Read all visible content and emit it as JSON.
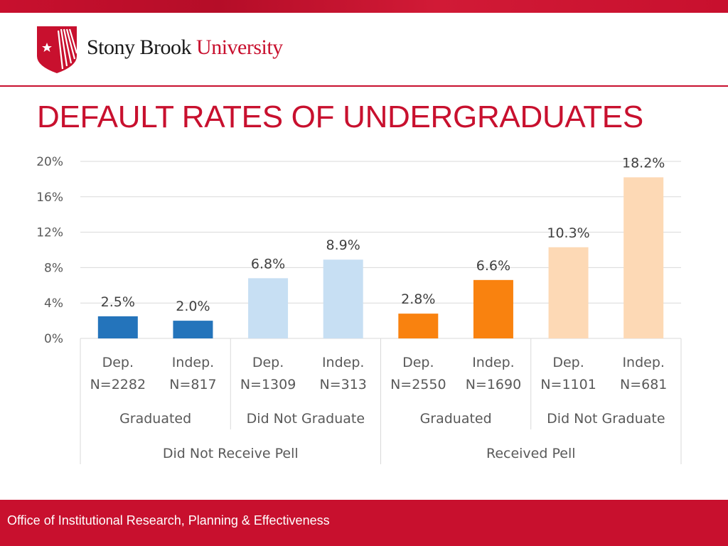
{
  "header": {
    "logo_word_1": "Stony Brook",
    "logo_word_2": "University",
    "logo_icon": "star-shield-icon",
    "brand_color": "#c8102e"
  },
  "title": "DEFAULT RATES OF UNDERGRADUATES",
  "footer": {
    "text": "Office of Institutional Research, Planning & Effectiveness"
  },
  "chart_data": {
    "type": "bar",
    "title": "",
    "xlabel": "",
    "ylabel": "",
    "ylim": [
      0,
      20
    ],
    "y_ticks": [
      "0%",
      "4%",
      "8%",
      "12%",
      "16%",
      "20%"
    ],
    "grid": true,
    "legend": "none",
    "categories": [
      {
        "line1": "Dep.",
        "line2": "N=2282"
      },
      {
        "line1": "Indep.",
        "line2": "N=817"
      },
      {
        "line1": "Dep.",
        "line2": "N=1309"
      },
      {
        "line1": "Indep.",
        "line2": "N=313"
      },
      {
        "line1": "Dep.",
        "line2": "N=2550"
      },
      {
        "line1": "Indep.",
        "line2": "N=1690"
      },
      {
        "line1": "Dep.",
        "line2": "N=1101"
      },
      {
        "line1": "Indep.",
        "line2": "N=681"
      }
    ],
    "values": [
      2.5,
      2.0,
      6.8,
      8.9,
      2.8,
      6.6,
      10.3,
      18.2
    ],
    "value_labels": [
      "2.5%",
      "2.0%",
      "6.8%",
      "8.9%",
      "2.8%",
      "6.6%",
      "10.3%",
      "18.2%"
    ],
    "colors": [
      "#2474bb",
      "#2474bb",
      "#c7dff3",
      "#c7dff3",
      "#f9820f",
      "#f9820f",
      "#fdd9b5",
      "#fdd9b5"
    ],
    "group_level_1": [
      "Graduated",
      "Did Not Graduate",
      "Graduated",
      "Did Not Graduate"
    ],
    "group_level_2": [
      "Did Not Receive Pell",
      "Received Pell"
    ]
  }
}
